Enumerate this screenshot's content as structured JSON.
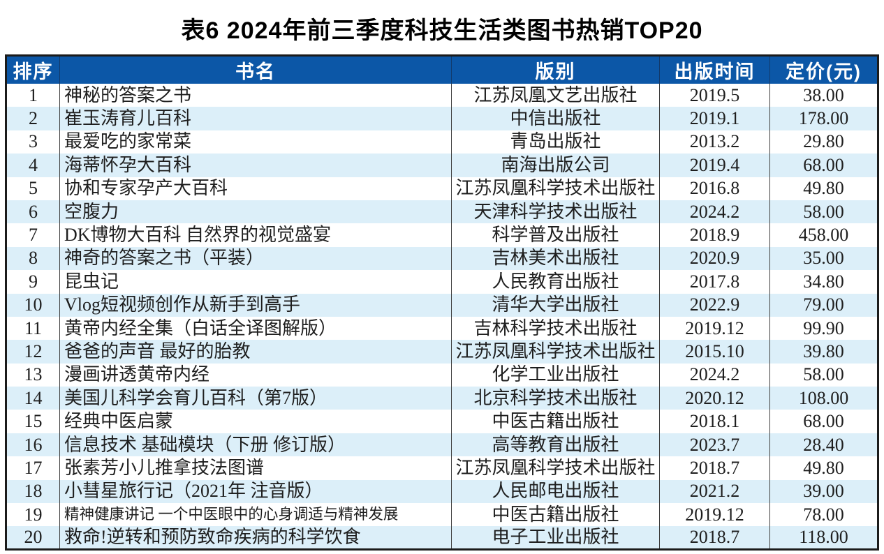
{
  "title": "表6 2024年前三季度科技生活类图书热销TOP20",
  "colors": {
    "header_bg": "#0c57a7",
    "header_text": "#ffffff",
    "row_alt_bg": "#dceff9",
    "outer_border": "#1b1b1b"
  },
  "table": {
    "headers": [
      "排序",
      "书名",
      "版别",
      "出版时间",
      "定价(元)"
    ],
    "rows": [
      {
        "rank": "1",
        "title": "神秘的答案之书",
        "publisher": "江苏凤凰文艺出版社",
        "date": "2019.5",
        "price": "38.00"
      },
      {
        "rank": "2",
        "title": "崔玉涛育儿百科",
        "publisher": "中信出版社",
        "date": "2019.1",
        "price": "178.00"
      },
      {
        "rank": "3",
        "title": "最爱吃的家常菜",
        "publisher": "青岛出版社",
        "date": "2013.2",
        "price": "29.80"
      },
      {
        "rank": "4",
        "title": "海蒂怀孕大百科",
        "publisher": "南海出版公司",
        "date": "2019.4",
        "price": "68.00"
      },
      {
        "rank": "5",
        "title": "协和专家孕产大百科",
        "publisher": "江苏凤凰科学技术出版社",
        "date": "2016.8",
        "price": "49.80"
      },
      {
        "rank": "6",
        "title": "空腹力",
        "publisher": "天津科学技术出版社",
        "date": "2024.2",
        "price": "58.00"
      },
      {
        "rank": "7",
        "title": "DK博物大百科 自然界的视觉盛宴",
        "publisher": "科学普及出版社",
        "date": "2018.9",
        "price": "458.00"
      },
      {
        "rank": "8",
        "title": "神奇的答案之书（平装）",
        "publisher": "吉林美术出版社",
        "date": "2020.9",
        "price": "35.00"
      },
      {
        "rank": "9",
        "title": "昆虫记",
        "publisher": "人民教育出版社",
        "date": "2017.8",
        "price": "34.80"
      },
      {
        "rank": "10",
        "title": "Vlog短视频创作从新手到高手",
        "publisher": "清华大学出版社",
        "date": "2022.9",
        "price": "79.00"
      },
      {
        "rank": "11",
        "title": "黄帝内经全集（白话全译图解版）",
        "publisher": "吉林科学技术出版社",
        "date": "2019.12",
        "price": "99.90"
      },
      {
        "rank": "12",
        "title": "爸爸的声音 最好的胎教",
        "publisher": "江苏凤凰科学技术出版社",
        "date": "2015.10",
        "price": "39.80"
      },
      {
        "rank": "13",
        "title": "漫画讲透黄帝内经",
        "publisher": "化学工业出版社",
        "date": "2024.2",
        "price": "58.00"
      },
      {
        "rank": "14",
        "title": "美国儿科学会育儿百科（第7版）",
        "publisher": "北京科学技术出版社",
        "date": "2020.12",
        "price": "108.00"
      },
      {
        "rank": "15",
        "title": "经典中医启蒙",
        "publisher": "中医古籍出版社",
        "date": "2018.1",
        "price": "68.00"
      },
      {
        "rank": "16",
        "title": "信息技术 基础模块（下册 修订版）",
        "publisher": "高等教育出版社",
        "date": "2023.7",
        "price": "28.40"
      },
      {
        "rank": "17",
        "title": "张素芳小儿推拿技法图谱",
        "publisher": "江苏凤凰科学技术出版社",
        "date": "2018.7",
        "price": "49.80"
      },
      {
        "rank": "18",
        "title": "小彗星旅行记（2021年 注音版）",
        "publisher": "人民邮电出版社",
        "date": "2021.2",
        "price": "39.00"
      },
      {
        "rank": "19",
        "title": "精神健康讲记 一个中医眼中的心身调适与精神发展",
        "publisher": "中医古籍出版社",
        "date": "2019.12",
        "price": "78.00"
      },
      {
        "rank": "20",
        "title": "救命!逆转和预防致命疾病的科学饮食",
        "publisher": "电子工业出版社",
        "date": "2018.7",
        "price": "118.00"
      }
    ]
  }
}
